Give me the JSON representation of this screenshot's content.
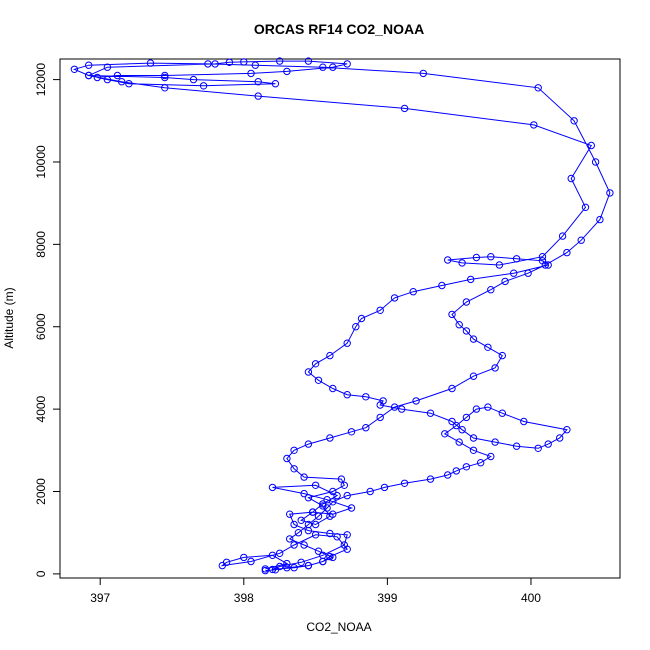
{
  "chart_data": {
    "type": "scatter",
    "title": "ORCAS RF14 CO2_NOAA",
    "xlabel": "CO2_NOAA",
    "ylabel": "Altitude (m)",
    "xlim": [
      396.72,
      400.62
    ],
    "ylim": [
      -100,
      12500
    ],
    "x_ticks": [
      397,
      398,
      399,
      400
    ],
    "y_ticks": [
      0,
      2000,
      4000,
      6000,
      8000,
      10000,
      12000
    ],
    "grid": false,
    "legend": "none",
    "color": "#0000ff",
    "marker": "open-circle",
    "connected": true,
    "series": [
      {
        "x": [
          398.15,
          398.3,
          398.2,
          398.0,
          397.88,
          397.85,
          398.05,
          398.25,
          398.35,
          398.5,
          398.65,
          398.72,
          398.6,
          398.55,
          398.45,
          398.35,
          398.2,
          398.25,
          398.4,
          398.55,
          398.7,
          398.72,
          398.6,
          398.45,
          398.35,
          398.32,
          398.48,
          398.62,
          398.75,
          398.58,
          398.42,
          398.2,
          398.5,
          398.65,
          398.55,
          398.48,
          398.4,
          398.5,
          398.6,
          398.55,
          398.45,
          398.62,
          398.7,
          398.68,
          398.42,
          398.35,
          398.3,
          398.35,
          398.45,
          398.6,
          398.75,
          398.85,
          398.95,
          399.05,
          399.2,
          399.45,
          399.6,
          399.75,
          399.8,
          399.7,
          399.6,
          399.55,
          399.5,
          399.45,
          399.55,
          399.72,
          399.82,
          399.98,
          400.1,
          400.25,
          400.35,
          400.48,
          400.55,
          400.45,
          400.3,
          400.05,
          399.25,
          398.55,
          398.08,
          397.75,
          397.35,
          396.92,
          396.82,
          396.92,
          397.45,
          397.65,
          398.1,
          398.22,
          397.72,
          397.2,
          397.05,
          396.98,
          397.12,
          397.45,
          398.05,
          398.3,
          398.62,
          398.72,
          398.45,
          398.25,
          398.0,
          397.9,
          397.8,
          397.05,
          396.92,
          397.15,
          397.45,
          398.1,
          399.12,
          400.02,
          400.42,
          400.28,
          400.38,
          400.22,
          400.08,
          399.78,
          399.52,
          399.42,
          399.62,
          399.72,
          399.9,
          400.08,
          400.12,
          399.88,
          399.58,
          399.38,
          399.18,
          399.05,
          398.95,
          398.82,
          398.78,
          398.72,
          398.6,
          398.5,
          398.45,
          398.52,
          398.62,
          398.72,
          398.85,
          398.97,
          398.95,
          399.1,
          399.3,
          399.45,
          399.52,
          399.6,
          399.75,
          399.9,
          400.05,
          400.12,
          400.2,
          400.25,
          399.95,
          399.8,
          399.7,
          399.62,
          399.55,
          399.48,
          399.4,
          399.5,
          399.6,
          399.72,
          399.65,
          399.55,
          399.48,
          399.42,
          399.3,
          399.12,
          398.98,
          398.88,
          398.72,
          398.62,
          398.58,
          398.52,
          398.45,
          398.38,
          398.32,
          398.42,
          398.52,
          398.62,
          398.55,
          398.45,
          398.3,
          398.22,
          398.15
        ],
        "y": [
          120,
          250,
          450,
          400,
          280,
          200,
          300,
          500,
          700,
          950,
          900,
          600,
          420,
          300,
          200,
          150,
          110,
          180,
          280,
          450,
          700,
          950,
          980,
          1050,
          1200,
          1450,
          1500,
          1450,
          1600,
          1800,
          1950,
          2100,
          2150,
          1900,
          1700,
          1500,
          1300,
          1200,
          1400,
          1650,
          1850,
          2000,
          2150,
          2300,
          2350,
          2550,
          2800,
          3000,
          3150,
          3300,
          3450,
          3550,
          3800,
          4050,
          4200,
          4500,
          4800,
          5000,
          5300,
          5500,
          5700,
          5900,
          6050,
          6300,
          6600,
          6900,
          7100,
          7300,
          7500,
          7800,
          8100,
          8600,
          9250,
          10000,
          11000,
          11800,
          12150,
          12300,
          12350,
          12380,
          12400,
          12350,
          12250,
          12100,
          12050,
          12000,
          11950,
          11900,
          11850,
          11900,
          12000,
          12050,
          12100,
          12100,
          12150,
          12200,
          12300,
          12380,
          12450,
          12450,
          12430,
          12420,
          12380,
          12300,
          12100,
          11950,
          11800,
          11600,
          11300,
          10900,
          10400,
          9600,
          8900,
          8200,
          7700,
          7500,
          7550,
          7620,
          7680,
          7700,
          7650,
          7600,
          7500,
          7300,
          7150,
          7000,
          6850,
          6700,
          6400,
          6200,
          6000,
          5600,
          5300,
          5100,
          4900,
          4700,
          4500,
          4350,
          4300,
          4200,
          4100,
          4000,
          3900,
          3700,
          3500,
          3300,
          3200,
          3100,
          3050,
          3150,
          3300,
          3500,
          3700,
          3900,
          4050,
          4000,
          3800,
          3600,
          3400,
          3200,
          3000,
          2850,
          2700,
          2600,
          2500,
          2400,
          2300,
          2200,
          2100,
          2000,
          1900,
          1750,
          1600,
          1400,
          1200,
          1000,
          850,
          700,
          550,
          400,
          300,
          200,
          150,
          100,
          80
        ],
        "note": ""
      }
    ]
  }
}
